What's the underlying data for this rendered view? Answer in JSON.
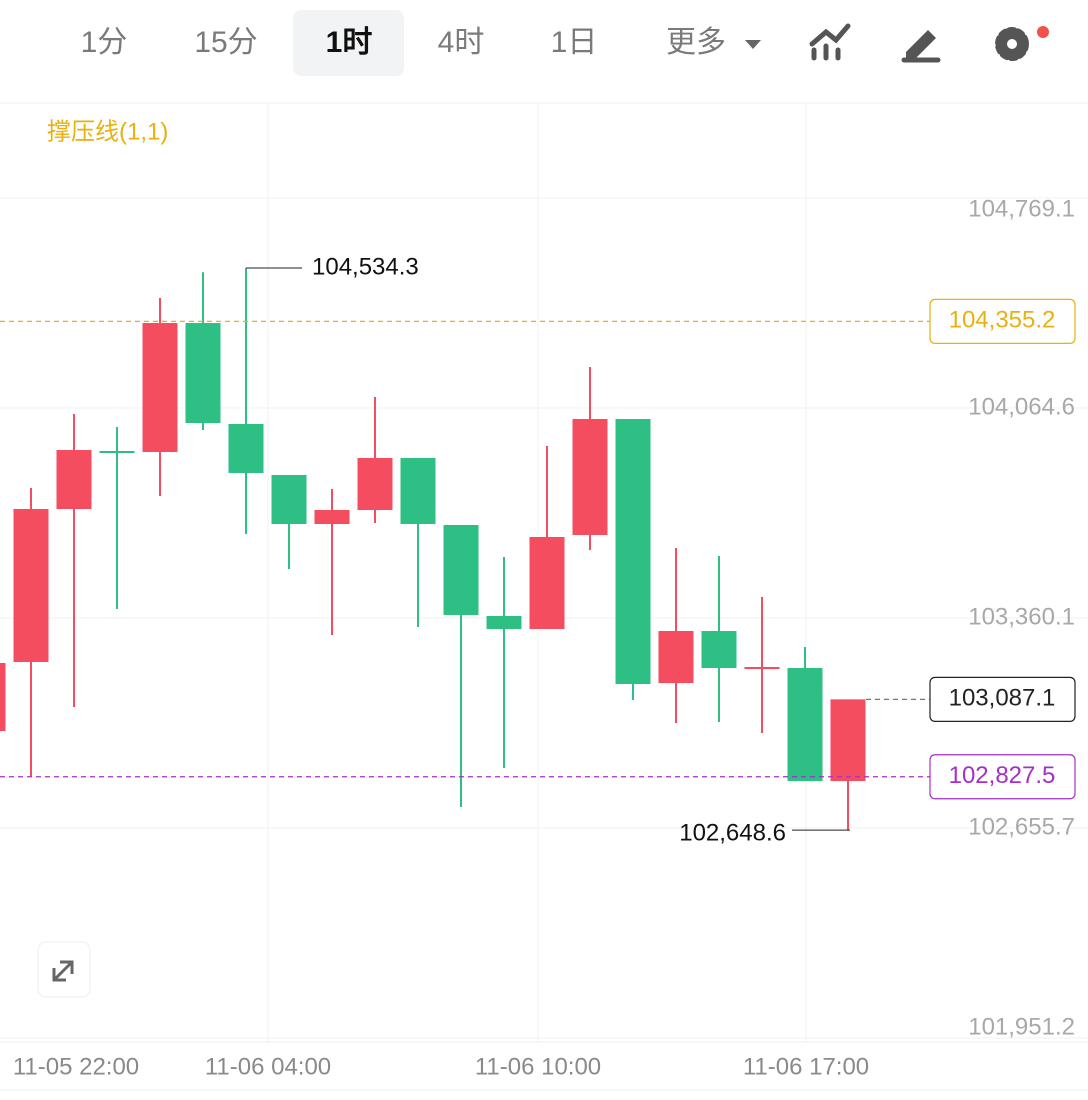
{
  "toolbar": {
    "tabs": [
      "1分",
      "15分",
      "1时",
      "4时",
      "1日",
      "更多"
    ],
    "selected": 2
  },
  "chart_data": {
    "type": "candlestick",
    "indicator": "撑压线(1,1)",
    "up_color": "#f44d60",
    "down_color": "#2ebf85",
    "open": [
      102981.0,
      103212.5,
      103725.8,
      103920.4,
      103917.0,
      104349.8,
      104011.0,
      103839.9,
      103675.5,
      103722.4,
      103896.9,
      103672.1,
      103366.8,
      103323.2,
      103638.6,
      104027.7,
      103142.0,
      103316.5,
      103192.3,
      103192.3,
      102813.2
    ],
    "high": [
      103209.1,
      103796.3,
      104044.5,
      104000.9,
      104433.7,
      104520.0,
      104534.3,
      103839.9,
      103792.9,
      104101.6,
      103896.9,
      103672.1,
      103564.8,
      103937.2,
      104202.2,
      104027.7,
      103595.0,
      103568.1,
      103430.6,
      103262.8,
      103087.1
    ],
    "low": [
      102981.0,
      102826.7,
      103061.5,
      103390.3,
      103769.4,
      103990.8,
      103641.9,
      103524.5,
      103303.1,
      103678.8,
      103329.9,
      102726.0,
      102856.8,
      103323.2,
      103588.2,
      103085.0,
      103007.8,
      103011.2,
      102974.3,
      102813.2,
      102648.6
    ],
    "close": [
      103209.1,
      103725.8,
      103923.7,
      103913.7,
      104349.8,
      104014.3,
      103846.6,
      103675.5,
      103722.4,
      103896.9,
      103675.5,
      103370.2,
      103323.2,
      103631.9,
      104027.7,
      103138.7,
      103316.5,
      103192.3,
      103195.7,
      102813.2,
      103087.1
    ],
    "x_labels": [
      "11-05 22:00",
      "11-06 04:00",
      "11-06 10:00",
      "11-06 17:00"
    ],
    "ylim": [
      101937.6,
      105087.9
    ],
    "yticks": [
      {
        "value": 101951.2,
        "label": "101,951.2"
      },
      {
        "value": 102655.7,
        "label": "102,655.7"
      },
      {
        "value": 103360.1,
        "label": "103,360.1"
      },
      {
        "value": 104064.6,
        "label": "104,064.6"
      },
      {
        "value": 104769.1,
        "label": "104,769.1"
      }
    ],
    "price_lines": [
      {
        "value": 104355.2,
        "label": "104,355.2",
        "color": "#e8b10f"
      },
      {
        "value": 103087.1,
        "label": "103,087.1",
        "color": "#222222"
      },
      {
        "value": 102827.5,
        "label": "102,827.5",
        "color": "#a62fc9"
      }
    ],
    "high_mark": {
      "value": 104534.3,
      "label": "104,534.3"
    },
    "low_mark": {
      "value": 102648.6,
      "label": "102,648.6"
    }
  }
}
